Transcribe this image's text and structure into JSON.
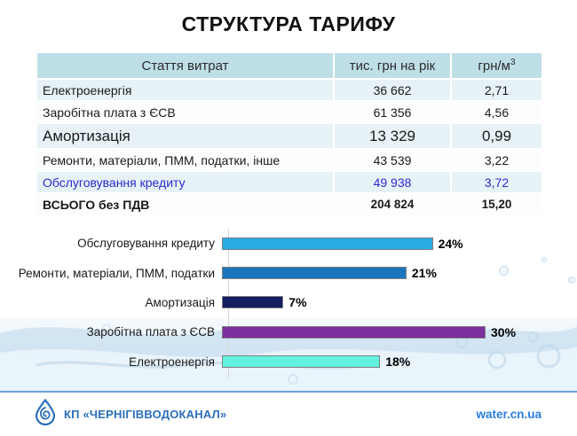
{
  "title": "СТРУКТУРА ТАРИФУ",
  "table": {
    "columns": [
      {
        "label": "Стаття витрат"
      },
      {
        "label": "тис. грн на рік"
      },
      {
        "label": "грн/м",
        "sup": "3"
      }
    ],
    "rows": [
      {
        "label": "Електроенергія",
        "annual": "36 662",
        "per_m3": "2,71"
      },
      {
        "label": "Заробітна плата з ЄСВ",
        "annual": "61 356",
        "per_m3": "4,56"
      },
      {
        "label": "Амортизація",
        "annual": "13 329",
        "per_m3": "0,99"
      },
      {
        "label": "Ремонти, матеріали, ПММ, податки, інше",
        "annual": "43 539",
        "per_m3": "3,22"
      },
      {
        "label": "Обслуговування кредиту",
        "annual": "49 938",
        "per_m3": "3,72"
      },
      {
        "label": "ВСЬОГО без ПДВ",
        "annual": "204 824",
        "per_m3": "15,20"
      }
    ]
  },
  "chart_data": {
    "type": "bar",
    "orientation": "horizontal",
    "categories": [
      "Обслуговування кредиту",
      "Ремонти, матеріали, ПММ, податки",
      "Амортизація",
      "Заробітна плата з ЄСВ",
      "Електроенергія"
    ],
    "values": [
      24,
      21,
      7,
      30,
      18
    ],
    "labels": [
      "24%",
      "21%",
      "7%",
      "30%",
      "18%"
    ],
    "colors": [
      "#29abe2",
      "#1b75bc",
      "#131f5e",
      "#7c2f9f",
      "#63f2e0"
    ],
    "xlim": [
      0,
      30
    ],
    "grid": false,
    "legend": false
  },
  "footer": {
    "company": "КП «ЧЕРНІГІВВОДОКАНАЛ»",
    "website": "water.cn.ua",
    "logo_icon": "water-drop-icon",
    "accent_color": "#2a6ebb"
  }
}
